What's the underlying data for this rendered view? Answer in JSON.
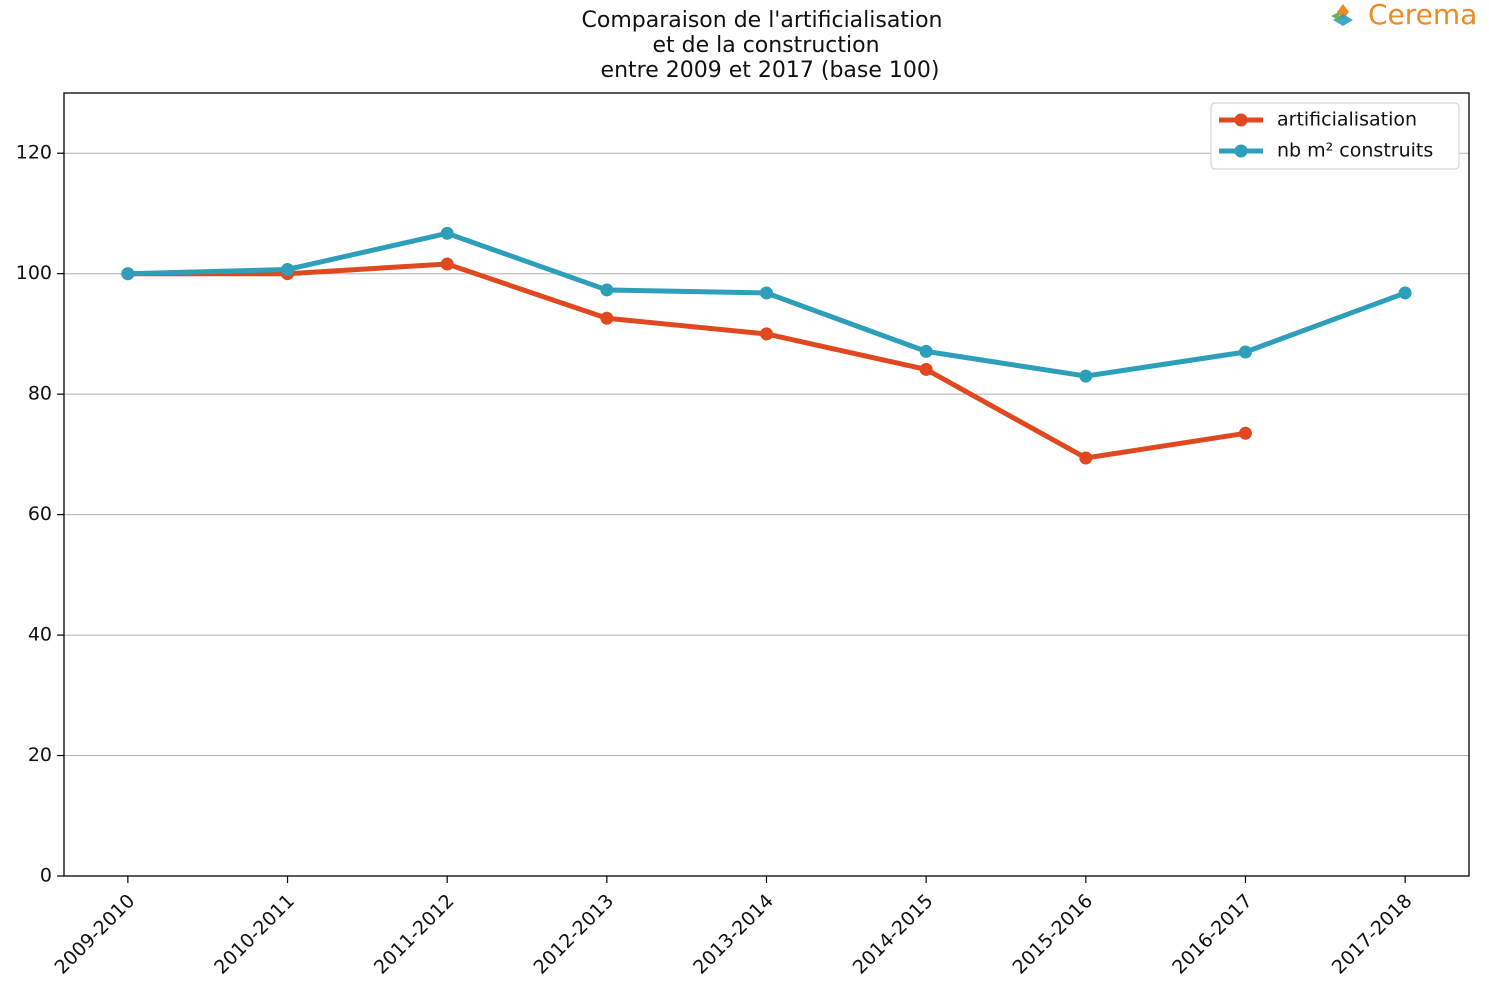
{
  "logo": "Cerema",
  "chart_data": {
    "type": "line",
    "title": [
      "Comparaison de l'artificialisation",
      "et de la construction",
      "entre 2009 et 2017 (base 100)"
    ],
    "categories": [
      "2009-2010",
      "2010-2011",
      "2011-2012",
      "2012-2013",
      "2013-2014",
      "2014-2015",
      "2015-2016",
      "2016-2017",
      "2017-2018"
    ],
    "series": [
      {
        "name": "artificialisation",
        "color": "#e0491f",
        "values": [
          100,
          100,
          101.6,
          92.6,
          90,
          84.1,
          69.4,
          73.5,
          null
        ]
      },
      {
        "name": "nb m² construits",
        "color": "#2e9fba",
        "values": [
          100,
          100.7,
          106.7,
          97.3,
          96.8,
          87.1,
          83,
          87,
          96.8
        ]
      }
    ],
    "ylim": [
      0,
      130
    ],
    "yticks": [
      0,
      20,
      40,
      60,
      80,
      100,
      120
    ],
    "grid": true,
    "legend": "upper right"
  }
}
